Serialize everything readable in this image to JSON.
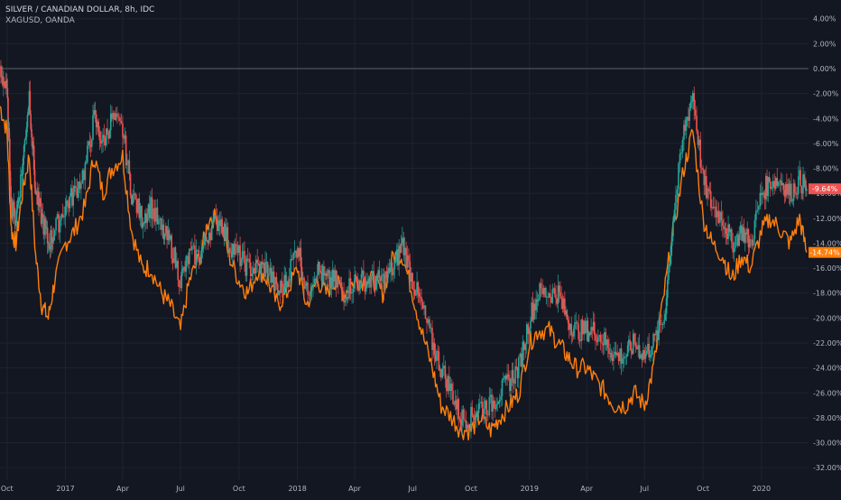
{
  "legend": {
    "title": "SILVER / CANADIAN DOLLAR, 8h, IDC",
    "subtitle": "XAGUSD, OANDA"
  },
  "colors": {
    "background": "#131722",
    "grid": "#1f2330",
    "zero_line": "#5d606b",
    "axis_text": "#b2b5be",
    "candle_up": "#26a69a",
    "candle_down": "#ef5350",
    "compare_line": "#ff7e0d",
    "badge_main": "#ef5350",
    "badge_compare": "#ff7e0d"
  },
  "chart_data": {
    "type": "line",
    "title": "SILVER / CANADIAN DOLLAR, 8h, IDC",
    "y_axis": {
      "unit": "%",
      "ylim": [
        -33,
        5.5
      ],
      "ticks": [
        4,
        2,
        0,
        -2,
        -4,
        -6,
        -8,
        -10,
        -12,
        -14,
        -16,
        -18,
        -20,
        -22,
        -24,
        -26,
        -28,
        -30,
        -32
      ],
      "tick_labels": [
        "4.00%",
        "2.00%",
        "0.00%",
        "-2.00%",
        "-4.00%",
        "-6.00%",
        "-8.00%",
        "-10.00%",
        "-12.00%",
        "-14.00%",
        "-16.00%",
        "-18.00%",
        "-20.00%",
        "-22.00%",
        "-24.00%",
        "-26.00%",
        "-28.00%",
        "-30.00%",
        "-32.00%"
      ]
    },
    "x_axis": {
      "range": [
        "2016-09-20",
        "2020-03-15"
      ],
      "ticks": [
        {
          "date": "2016-10-01",
          "label": "Oct"
        },
        {
          "date": "2017-01-01",
          "label": "2017"
        },
        {
          "date": "2017-04-01",
          "label": "Apr"
        },
        {
          "date": "2017-07-01",
          "label": "Jul"
        },
        {
          "date": "2017-10-01",
          "label": "Oct"
        },
        {
          "date": "2018-01-01",
          "label": "2018"
        },
        {
          "date": "2018-04-01",
          "label": "Apr"
        },
        {
          "date": "2018-07-01",
          "label": "Jul"
        },
        {
          "date": "2018-10-01",
          "label": "Oct"
        },
        {
          "date": "2019-01-01",
          "label": "2019"
        },
        {
          "date": "2019-04-01",
          "label": "Apr"
        },
        {
          "date": "2019-07-01",
          "label": "Jul"
        },
        {
          "date": "2019-10-01",
          "label": "Oct"
        },
        {
          "date": "2020-01-01",
          "label": "2020"
        }
      ]
    },
    "series": [
      {
        "name": "SILVER / CANADIAN DOLLAR",
        "style": "candles",
        "last_value_label": "-9.64%",
        "last_value": -9.64,
        "x": [
          "2016-09-20",
          "2016-10-01",
          "2016-10-08",
          "2016-10-15",
          "2016-10-25",
          "2016-11-05",
          "2016-11-15",
          "2016-11-25",
          "2016-12-05",
          "2016-12-15",
          "2017-01-01",
          "2017-01-15",
          "2017-02-01",
          "2017-02-15",
          "2017-03-01",
          "2017-03-15",
          "2017-04-01",
          "2017-04-15",
          "2017-05-01",
          "2017-05-15",
          "2017-06-01",
          "2017-06-15",
          "2017-07-01",
          "2017-07-15",
          "2017-08-01",
          "2017-08-15",
          "2017-09-01",
          "2017-09-15",
          "2017-10-01",
          "2017-10-15",
          "2017-11-01",
          "2017-11-15",
          "2017-12-01",
          "2017-12-15",
          "2018-01-01",
          "2018-01-15",
          "2018-02-01",
          "2018-02-15",
          "2018-03-01",
          "2018-03-15",
          "2018-04-01",
          "2018-04-15",
          "2018-05-01",
          "2018-05-15",
          "2018-06-01",
          "2018-06-15",
          "2018-07-01",
          "2018-07-15",
          "2018-08-01",
          "2018-08-15",
          "2018-09-01",
          "2018-09-15",
          "2018-10-01",
          "2018-10-15",
          "2018-11-01",
          "2018-11-15",
          "2018-12-01",
          "2018-12-15",
          "2019-01-01",
          "2019-01-15",
          "2019-02-01",
          "2019-02-15",
          "2019-03-01",
          "2019-03-15",
          "2019-04-01",
          "2019-04-15",
          "2019-05-01",
          "2019-05-15",
          "2019-06-01",
          "2019-06-15",
          "2019-07-01",
          "2019-07-15",
          "2019-08-01",
          "2019-08-15",
          "2019-09-01",
          "2019-09-15",
          "2019-10-01",
          "2019-10-15",
          "2019-11-01",
          "2019-11-15",
          "2019-12-01",
          "2019-12-15",
          "2020-01-01",
          "2020-01-15",
          "2020-02-01",
          "2020-02-15",
          "2020-03-01",
          "2020-03-12"
        ],
        "values": [
          0.0,
          -2,
          -11,
          -12,
          -8,
          -2,
          -10,
          -12,
          -14,
          -13,
          -11,
          -10,
          -8,
          -4,
          -6,
          -4,
          -5,
          -10,
          -12,
          -11,
          -13,
          -14,
          -17,
          -15,
          -15,
          -13,
          -12,
          -14,
          -15,
          -16,
          -16,
          -16,
          -18,
          -17,
          -14,
          -18,
          -16,
          -17,
          -17,
          -18,
          -17,
          -17,
          -17,
          -17,
          -16,
          -14,
          -17,
          -19,
          -22,
          -24,
          -26,
          -28,
          -28,
          -27,
          -27,
          -26,
          -25,
          -24,
          -20,
          -18,
          -18,
          -18,
          -20,
          -21,
          -21,
          -21,
          -22,
          -23,
          -23,
          -22,
          -23,
          -22,
          -20,
          -12,
          -5,
          -2,
          -9,
          -11,
          -12,
          -14,
          -13,
          -14,
          -10,
          -9,
          -9,
          -10,
          -9,
          -9.64
        ]
      },
      {
        "name": "XAGUSD, OANDA",
        "style": "line",
        "last_value_label": "-14.74%",
        "last_value": -14.74,
        "x": [
          "2016-09-20",
          "2016-10-01",
          "2016-10-08",
          "2016-10-15",
          "2016-10-25",
          "2016-11-05",
          "2016-11-15",
          "2016-11-25",
          "2016-12-05",
          "2016-12-15",
          "2017-01-01",
          "2017-01-15",
          "2017-02-01",
          "2017-02-15",
          "2017-03-01",
          "2017-03-15",
          "2017-04-01",
          "2017-04-15",
          "2017-05-01",
          "2017-05-15",
          "2017-06-01",
          "2017-06-15",
          "2017-07-01",
          "2017-07-15",
          "2017-08-01",
          "2017-08-15",
          "2017-09-01",
          "2017-09-15",
          "2017-10-01",
          "2017-10-15",
          "2017-11-01",
          "2017-11-15",
          "2017-12-01",
          "2017-12-15",
          "2018-01-01",
          "2018-01-15",
          "2018-02-01",
          "2018-02-15",
          "2018-03-01",
          "2018-03-15",
          "2018-04-01",
          "2018-04-15",
          "2018-05-01",
          "2018-05-15",
          "2018-06-01",
          "2018-06-15",
          "2018-07-01",
          "2018-07-15",
          "2018-08-01",
          "2018-08-15",
          "2018-09-01",
          "2018-09-15",
          "2018-10-01",
          "2018-10-15",
          "2018-11-01",
          "2018-11-15",
          "2018-12-01",
          "2018-12-15",
          "2019-01-01",
          "2019-01-15",
          "2019-02-01",
          "2019-02-15",
          "2019-03-01",
          "2019-03-15",
          "2019-04-01",
          "2019-04-15",
          "2019-05-01",
          "2019-05-15",
          "2019-06-01",
          "2019-06-15",
          "2019-07-01",
          "2019-07-15",
          "2019-08-01",
          "2019-08-15",
          "2019-09-01",
          "2019-09-15",
          "2019-10-01",
          "2019-10-15",
          "2019-11-01",
          "2019-11-15",
          "2019-12-01",
          "2019-12-15",
          "2020-01-01",
          "2020-01-15",
          "2020-02-01",
          "2020-02-15",
          "2020-03-01",
          "2020-03-12"
        ],
        "values": [
          -3,
          -5,
          -13,
          -14,
          -10,
          -7,
          -15,
          -19,
          -20,
          -17,
          -14,
          -13,
          -11,
          -7,
          -10,
          -8,
          -7,
          -13,
          -16,
          -16,
          -18,
          -19,
          -21,
          -17,
          -15,
          -12,
          -12,
          -15,
          -17,
          -18,
          -16,
          -17,
          -19,
          -18,
          -16,
          -19,
          -17,
          -18,
          -17,
          -18,
          -17,
          -17,
          -17,
          -18,
          -15,
          -15,
          -18,
          -21,
          -24,
          -27,
          -28,
          -29,
          -29,
          -28,
          -29,
          -28,
          -27,
          -26,
          -22,
          -21,
          -21,
          -22,
          -23,
          -24,
          -24,
          -25,
          -26,
          -27,
          -27,
          -26,
          -27,
          -24,
          -18,
          -13,
          -8,
          -5,
          -12,
          -14,
          -15,
          -17,
          -15,
          -16,
          -13,
          -12,
          -13,
          -14,
          -12,
          -14.74
        ]
      }
    ]
  }
}
